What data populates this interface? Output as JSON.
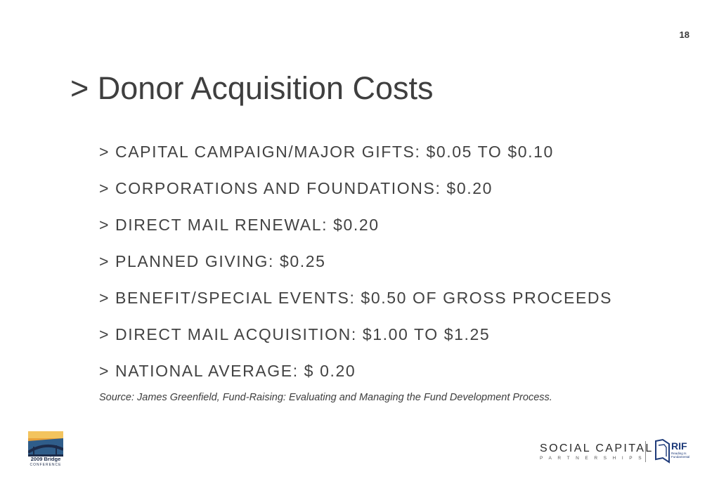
{
  "page_number": "18",
  "title": "> Donor Acquisition Costs",
  "bullets": [
    "> CAPITAL CAMPAIGN/MAJOR GIFTS: $0.05 TO $0.10",
    "> CORPORATIONS AND FOUNDATIONS: $0.20",
    "> DIRECT MAIL RENEWAL: $0.20",
    "> PLANNED GIVING: $0.25",
    "> BENEFIT/SPECIAL EVENTS: $0.50 OF GROSS PROCEEDS",
    "> DIRECT MAIL ACQUISITION: $1.00 TO $1.25",
    "> NATIONAL AVERAGE: $ 0.20"
  ],
  "source": "Source: James Greenfield, Fund-Raising: Evaluating and Managing the Fund Development Process.",
  "logos": {
    "bridge": {
      "line1": "2009 Bridge",
      "line2": "CONFERENCE"
    },
    "social_capital": {
      "main": "SOCIAL CAPITAL",
      "sub": "PARTNERSHIPS"
    },
    "rif": {
      "main": "RIF",
      "tagline_1": "Reading Is",
      "tagline_2": "Fundamental"
    }
  },
  "colors": {
    "text": "#3d3d3d",
    "rif_blue": "#1e3b7a",
    "bridge_navy": "#1c2b4a"
  }
}
